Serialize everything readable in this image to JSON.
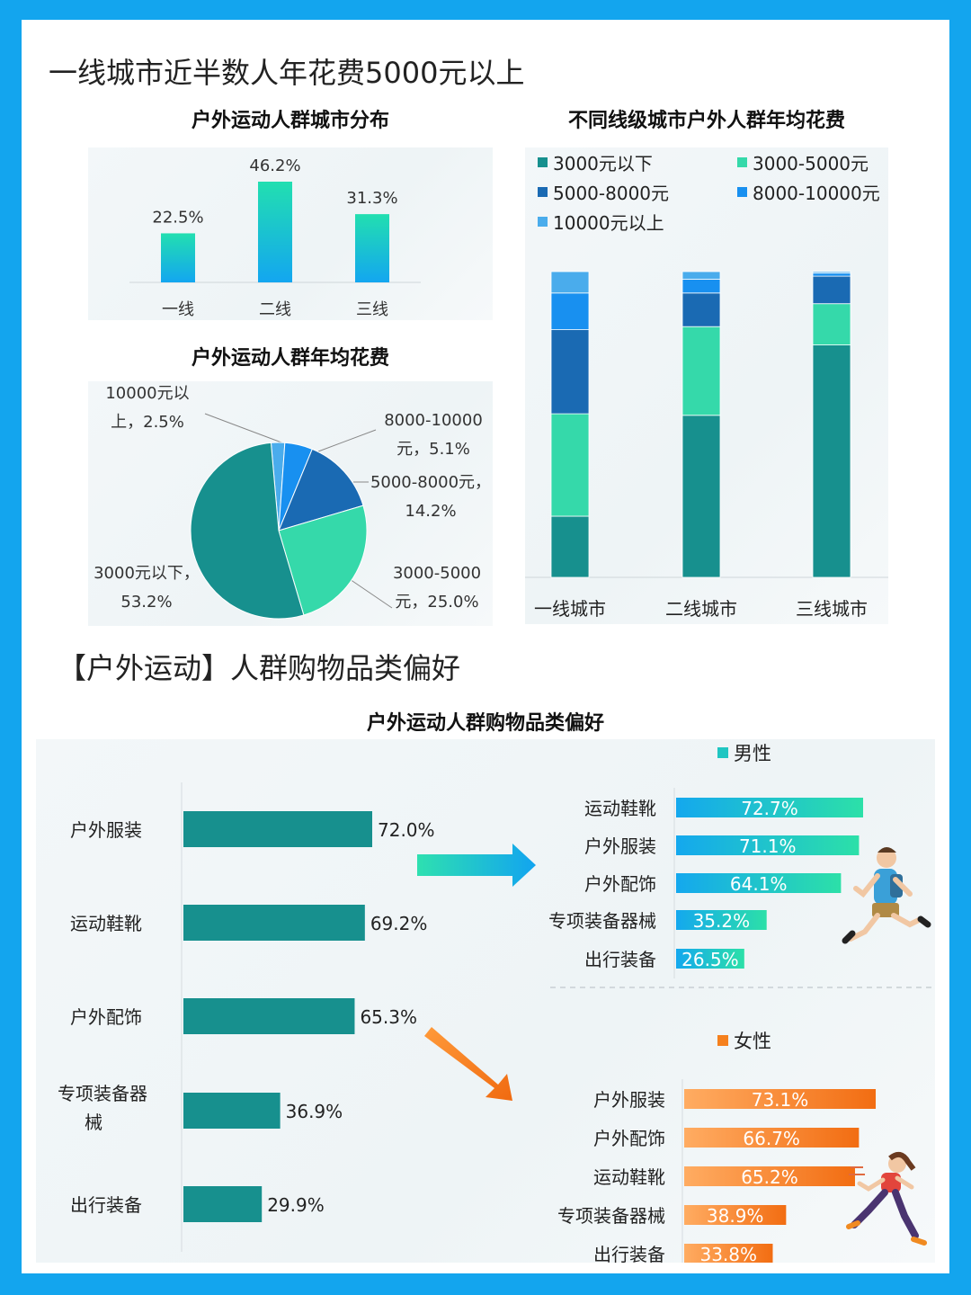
{
  "main_title": "一线城市近半数人年花费5000元以上",
  "section2_title": "【户外运动】人群购物品类偏好",
  "colors": {
    "teal": "#17908e",
    "mint": "#35d9aa",
    "navy": "#1a6ab3",
    "blue": "#1890f0",
    "light_blue": "#4aacec",
    "male_gradient": "#20d3b5",
    "female_gradient": "#f57a1c"
  },
  "chart_data": [
    {
      "id": "city_distribution",
      "type": "bar",
      "title": "户外运动人群城市分布",
      "categories": [
        "一线",
        "二线",
        "三线"
      ],
      "values": [
        22.5,
        46.2,
        31.3
      ],
      "value_labels": [
        "22.5%",
        "46.2%",
        "31.3%"
      ],
      "ylim": [
        0,
        50
      ]
    },
    {
      "id": "annual_spend",
      "type": "pie",
      "title": "户外运动人群年均花费",
      "slices": [
        {
          "label": "3000元以下，",
          "label2": "53.2%",
          "value": 53.2,
          "color": "#17908e"
        },
        {
          "label": "3000-5000",
          "label2": "元，25.0%",
          "value": 25.0,
          "color": "#35d9aa"
        },
        {
          "label": "5000-8000元，",
          "label2": "14.2%",
          "value": 14.2,
          "color": "#1a6ab3"
        },
        {
          "label": "8000-10000",
          "label2": "元，5.1%",
          "value": 5.1,
          "color": "#1890f0"
        },
        {
          "label": "10000元以",
          "label2": "上，2.5%",
          "value": 2.5,
          "color": "#4aacec"
        }
      ]
    },
    {
      "id": "tier_spend",
      "type": "bar",
      "stacked": true,
      "percent_stacked": true,
      "title": "不同线级城市户外人群年均花费",
      "categories": [
        "一线城市",
        "二线城市",
        "三线城市"
      ],
      "series": [
        {
          "name": "3000元以下",
          "color": "#17908e",
          "values": [
            20,
            53,
            76
          ]
        },
        {
          "name": "3000-5000元",
          "color": "#35d9aa",
          "values": [
            33.5,
            29,
            13.5
          ]
        },
        {
          "name": "5000-8000元",
          "color": "#1a6ab3",
          "values": [
            27.5,
            11,
            9
          ]
        },
        {
          "name": "8000-10000元",
          "color": "#1890f0",
          "values": [
            12,
            4.5,
            1
          ]
        },
        {
          "name": "10000元以上",
          "color": "#4aacec",
          "values": [
            7,
            2.5,
            0.5
          ]
        }
      ],
      "legend": "top",
      "ylim": [
        0,
        100
      ]
    },
    {
      "id": "category_pref",
      "type": "bar",
      "orientation": "horizontal",
      "title": "户外运动人群购物品类偏好",
      "categories": [
        "户外服装",
        "运动鞋靴",
        "户外配饰",
        "专项装备器械",
        "出行装备"
      ],
      "values": [
        72.0,
        69.2,
        65.3,
        36.9,
        29.9
      ],
      "value_labels": [
        "72.0%",
        "69.2%",
        "65.3%",
        "36.9%",
        "29.9%"
      ],
      "xlim": [
        0,
        100
      ]
    },
    {
      "id": "male_pref",
      "type": "bar",
      "orientation": "horizontal",
      "title": "男性",
      "categories": [
        "运动鞋靴",
        "户外服装",
        "户外配饰",
        "专项装备器械",
        "出行装备"
      ],
      "values": [
        72.7,
        71.1,
        64.1,
        35.2,
        26.5
      ],
      "value_labels": [
        "72.7%",
        "71.1%",
        "64.1%",
        "35.2%",
        "26.5%"
      ],
      "xlim": [
        0,
        100
      ]
    },
    {
      "id": "female_pref",
      "type": "bar",
      "orientation": "horizontal",
      "title": "女性",
      "categories": [
        "户外服装",
        "户外配饰",
        "运动鞋靴",
        "专项装备器械",
        "出行装备"
      ],
      "values": [
        73.1,
        66.7,
        65.2,
        38.9,
        33.8
      ],
      "value_labels": [
        "73.1%",
        "66.7%",
        "65.2%",
        "38.9%",
        "33.8%"
      ],
      "xlim": [
        0,
        100
      ]
    }
  ]
}
